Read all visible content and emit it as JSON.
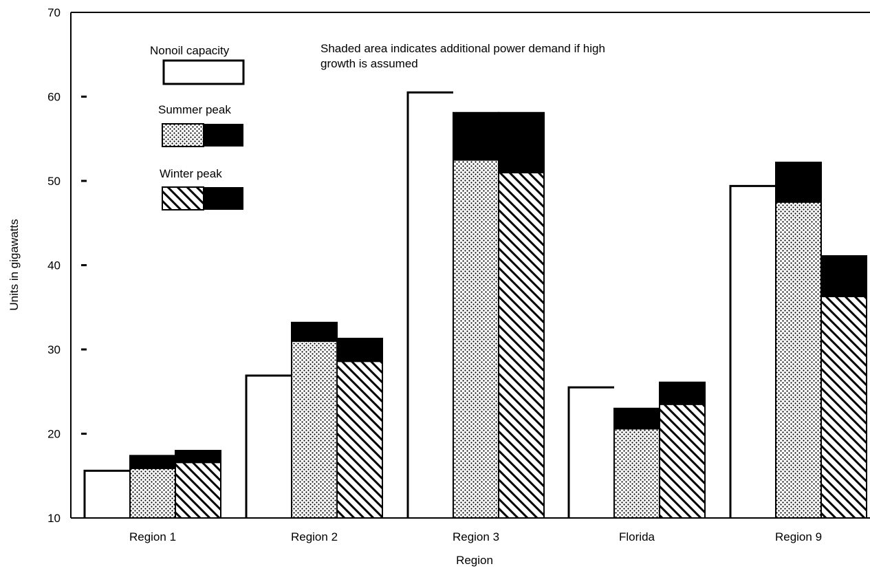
{
  "chart_data": {
    "type": "bar",
    "xlabel": "Region",
    "ylabel": "Units in gigawatts",
    "ylim": [
      10,
      70
    ],
    "yticks": [
      10,
      20,
      30,
      40,
      50,
      60,
      70
    ],
    "categories": [
      "Region 1",
      "Region 2",
      "Region 3",
      "Florida",
      "Region 9"
    ],
    "series": [
      {
        "name": "Nonoil capacity",
        "values": [
          15.6,
          26.9,
          60.5,
          25.5,
          49.4
        ]
      },
      {
        "name": "Summer peak",
        "values": [
          15.8,
          30.9,
          52.4,
          20.5,
          47.4
        ],
        "high_growth_values": [
          17.4,
          33.2,
          58.1,
          23.0,
          52.2
        ]
      },
      {
        "name": "Winter peak",
        "values": [
          16.5,
          28.5,
          50.9,
          23.4,
          36.2
        ],
        "high_growth_values": [
          18.0,
          31.3,
          58.1,
          26.1,
          41.1
        ]
      }
    ],
    "legend": {
      "position": "top-left",
      "entries": [
        "Nonoil capacity",
        "Summer peak",
        "Winter peak"
      ]
    },
    "annotation": "Shaded area indicates additional power demand if high growth is assumed",
    "grid": false,
    "colors": {
      "capacity_fill": "#ffffff",
      "high_growth_fill": "#000000",
      "stroke": "#000000"
    },
    "patterns": {
      "Nonoil capacity": "blank",
      "Summer peak": "dotted",
      "Winter peak": "hatched"
    }
  }
}
